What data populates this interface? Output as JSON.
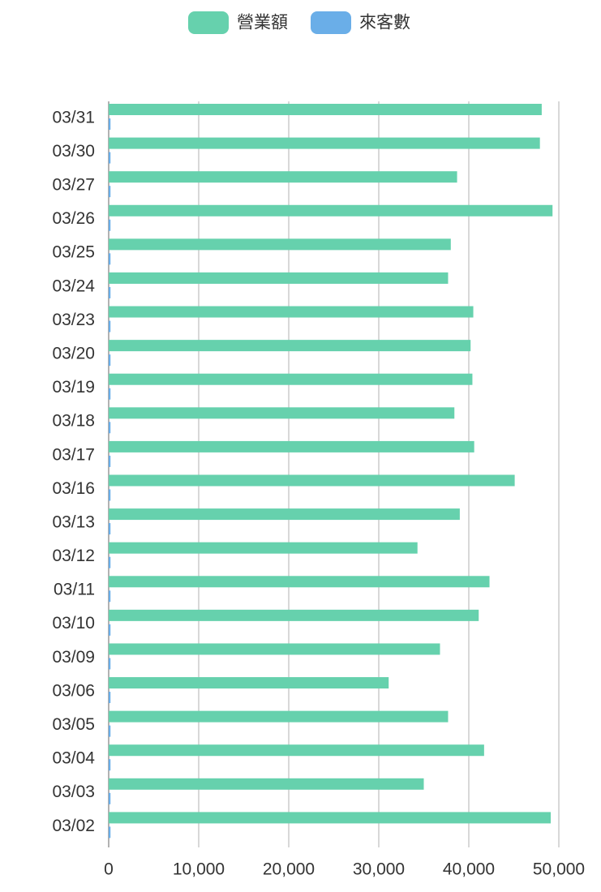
{
  "chart_data": {
    "type": "hbar",
    "categories": [
      "03/31",
      "03/30",
      "03/27",
      "03/26",
      "03/25",
      "03/24",
      "03/23",
      "03/20",
      "03/19",
      "03/18",
      "03/17",
      "03/16",
      "03/13",
      "03/12",
      "03/11",
      "03/10",
      "03/09",
      "03/06",
      "03/05",
      "03/04",
      "03/03",
      "03/02"
    ],
    "series": [
      {
        "name": "營業額",
        "color": "#66d1ad",
        "values": [
          48100,
          47900,
          38700,
          49300,
          38000,
          37700,
          40500,
          40200,
          40400,
          38400,
          40600,
          45100,
          39000,
          34300,
          42300,
          41100,
          36800,
          31100,
          37700,
          41700,
          35000,
          49100
        ]
      },
      {
        "name": "來客數",
        "color": "#6aaee8",
        "values": [
          200,
          200,
          200,
          200,
          200,
          200,
          200,
          200,
          200,
          200,
          200,
          200,
          200,
          200,
          200,
          200,
          200,
          200,
          200,
          200,
          200,
          200
        ]
      }
    ],
    "xlim": [
      0,
      50000
    ],
    "xticks": [
      0,
      {
        "value": 10000,
        "label": "10,000"
      },
      {
        "value": 20000,
        "label": "20,000"
      },
      {
        "value": 30000,
        "label": "30,000"
      },
      {
        "value": 40000,
        "label": "40,000"
      },
      {
        "value": 50000,
        "label": "50,000"
      }
    ],
    "grid": true
  }
}
